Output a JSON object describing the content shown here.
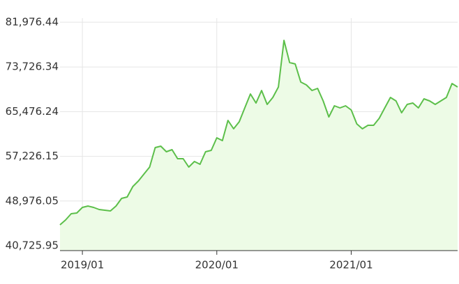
{
  "chart_data": {
    "type": "area",
    "categories": [
      null,
      null,
      null,
      null,
      "2019/01",
      null,
      null,
      null,
      null,
      null,
      null,
      null,
      null,
      null,
      null,
      null,
      null,
      null,
      null,
      null,
      null,
      null,
      null,
      null,
      null,
      null,
      null,
      null,
      "2020/01",
      null,
      null,
      null,
      null,
      null,
      null,
      null,
      null,
      null,
      null,
      null,
      null,
      null,
      null,
      null,
      null,
      null,
      null,
      null,
      null,
      null,
      null,
      null,
      "2021/01",
      null,
      null,
      null,
      null,
      null,
      null,
      null,
      null,
      null,
      null,
      null,
      null,
      null,
      null,
      null,
      null,
      null,
      null,
      null
    ],
    "values": [
      44580,
      45480,
      46640,
      46770,
      47790,
      48050,
      47790,
      47410,
      47280,
      47150,
      48050,
      49460,
      49720,
      51650,
      52680,
      53960,
      55250,
      58840,
      59100,
      58070,
      58460,
      56790,
      56790,
      55250,
      56270,
      55760,
      58070,
      58330,
      60650,
      60130,
      63860,
      62310,
      63600,
      66170,
      68740,
      67070,
      69380,
      66810,
      68100,
      70020,
      78640,
      74530,
      74280,
      70940,
      70410,
      69380,
      69770,
      67460,
      64500,
      66560,
      66170,
      66560,
      65780,
      63210,
      62310,
      62960,
      62960,
      64240,
      66170,
      68100,
      67460,
      65270,
      66810,
      67070,
      66170,
      67840,
      67460,
      66810,
      67460,
      68100,
      70670,
      70020
    ],
    "color": "#5cbf4a",
    "fill": "#edfbe6",
    "ylim": [
      40725.95,
      81976.44
    ],
    "yticks": [
      {
        "value": 40725.95,
        "label": "40,725.95"
      },
      {
        "value": 48976.05,
        "label": "48,976.05"
      },
      {
        "value": 57226.15,
        "label": "57,226.15"
      },
      {
        "value": 65476.24,
        "label": "65,476.24"
      },
      {
        "value": 73726.34,
        "label": "73,726.34"
      },
      {
        "value": 81976.44,
        "label": "81,976.44"
      }
    ],
    "grid": true
  }
}
